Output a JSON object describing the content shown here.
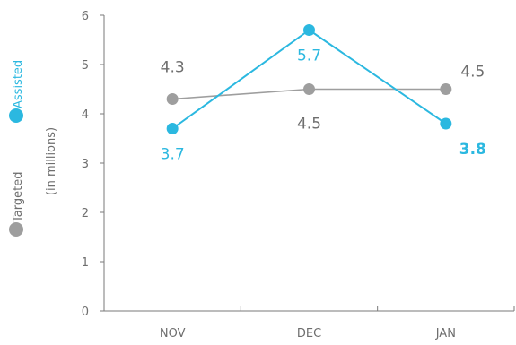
{
  "chart_data": {
    "type": "line",
    "categories": [
      "NOV",
      "DEC",
      "JAN"
    ],
    "ylim": [
      0,
      6
    ],
    "yticks": [
      "0",
      "1",
      "2",
      "3",
      "4",
      "5",
      "6"
    ],
    "ylabel": "(in millions)",
    "grid": false,
    "legend_position": "left-vertical",
    "series": [
      {
        "name": "Targeted",
        "color": "#9e9e9e",
        "values": [
          4.3,
          4.5,
          4.5
        ],
        "labels": [
          "4.3",
          "4.5",
          "4.5"
        ]
      },
      {
        "name": "Assisted",
        "color": "#2bb8e0",
        "values": [
          3.7,
          5.7,
          3.8
        ],
        "labels": [
          "3.7",
          "5.7",
          "3.8"
        ]
      }
    ]
  }
}
